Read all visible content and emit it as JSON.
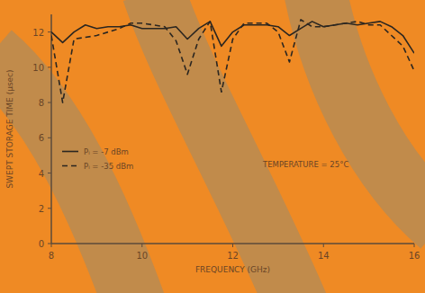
{
  "chart_data": {
    "type": "line",
    "x_label": "FREQUENCY (GHz)",
    "y_label": "SWEPT STORAGE TIME (μsec)",
    "annotation": "TEMPERATURE = 25°C",
    "x": [
      8,
      8.25,
      8.5,
      8.75,
      9,
      9.25,
      9.5,
      9.75,
      10,
      10.25,
      10.5,
      10.75,
      11,
      11.25,
      11.5,
      11.75,
      12,
      12.25,
      12.5,
      12.75,
      13,
      13.25,
      13.5,
      13.75,
      14,
      14.25,
      14.5,
      14.75,
      15,
      15.25,
      15.5,
      15.75,
      16
    ],
    "series": [
      {
        "name": "Pᵢ = -7 dBm",
        "color": "#2b2620",
        "line_style": "solid",
        "values": [
          12.0,
          11.4,
          12.0,
          12.4,
          12.2,
          12.3,
          12.3,
          12.4,
          12.2,
          12.2,
          12.2,
          12.3,
          11.6,
          12.2,
          12.6,
          11.2,
          12.0,
          12.4,
          12.4,
          12.4,
          12.3,
          11.8,
          12.2,
          12.6,
          12.3,
          12.4,
          12.5,
          12.4,
          12.5,
          12.6,
          12.3,
          11.8,
          10.8
        ]
      },
      {
        "name": "Pᵢ = -35 dBm",
        "color": "#2b2620",
        "line_style": "dashed",
        "values": [
          11.8,
          8.0,
          11.6,
          11.7,
          11.8,
          12.0,
          12.2,
          12.5,
          12.5,
          12.4,
          12.3,
          11.5,
          9.6,
          11.6,
          12.6,
          8.6,
          11.6,
          12.5,
          12.5,
          12.5,
          12.0,
          10.3,
          12.7,
          12.3,
          12.3,
          12.4,
          12.5,
          12.6,
          12.4,
          12.4,
          11.8,
          11.2,
          9.8
        ]
      }
    ],
    "xlim": [
      8,
      16
    ],
    "xticks": [
      8,
      10,
      12,
      14,
      16
    ],
    "ylim": [
      0,
      13
    ],
    "yticks": [
      0,
      2,
      4,
      6,
      8,
      10,
      12
    ],
    "grid": false,
    "legend": "left"
  }
}
